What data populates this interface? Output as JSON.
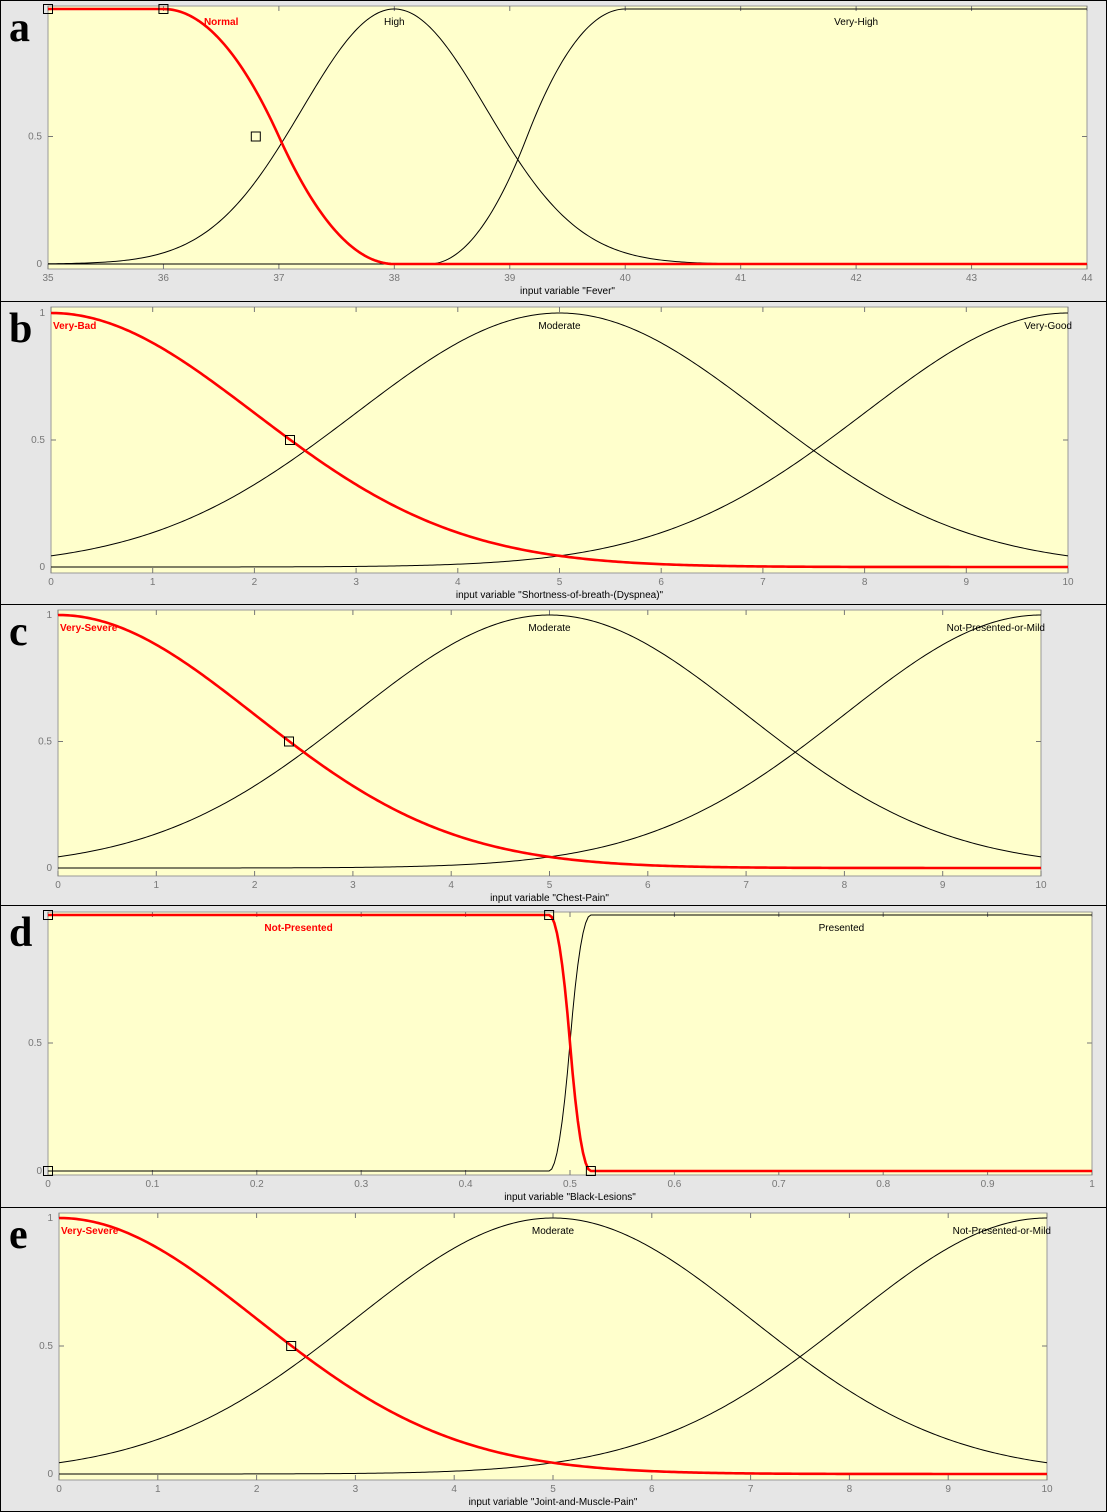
{
  "chart_data": [
    {
      "type": "line",
      "panel_letter": "a",
      "xlabel": "input variable \"Fever\"",
      "xlim": [
        35,
        44
      ],
      "ylim": [
        0,
        1
      ],
      "xticks": [
        35,
        36,
        37,
        38,
        39,
        40,
        41,
        42,
        43,
        44
      ],
      "xtick_labels": [
        "35",
        "36",
        "37",
        "38",
        "39",
        "40",
        "41",
        "42",
        "43",
        "44"
      ],
      "yticks": [
        0,
        0.5,
        1
      ],
      "ytick_labels": [
        "0",
        "0.5",
        ""
      ],
      "series_color": "#000000",
      "selected_color": "#ff0000",
      "series": [
        {
          "name": "Normal",
          "selected": true,
          "label_x": 36.5,
          "mf": {
            "kind": "zmf",
            "params": [
              36,
              38
            ]
          }
        },
        {
          "name": "High",
          "selected": false,
          "label_x": 38,
          "mf": {
            "kind": "gauss",
            "params": [
              0.8,
              38
            ]
          }
        },
        {
          "name": "Very-High",
          "selected": false,
          "label_x": 42,
          "mf": {
            "kind": "smf",
            "params": [
              38.3,
              40
            ]
          }
        }
      ],
      "markers": [
        [
          35,
          1
        ],
        [
          36,
          1
        ],
        [
          36.8,
          0.5
        ]
      ]
    },
    {
      "type": "line",
      "panel_letter": "b",
      "xlabel": "input variable \"Shortness-of-breath-(Dyspnea)\"",
      "xlim": [
        0,
        10
      ],
      "ylim": [
        0,
        1
      ],
      "xticks": [
        0,
        1,
        2,
        3,
        4,
        5,
        6,
        7,
        8,
        9,
        10
      ],
      "xtick_labels": [
        "0",
        "1",
        "2",
        "3",
        "4",
        "5",
        "6",
        "7",
        "8",
        "9",
        "10"
      ],
      "yticks": [
        0,
        0.5,
        1
      ],
      "ytick_labels": [
        "0",
        "0.5",
        "1"
      ],
      "series_color": "#000000",
      "selected_color": "#ff0000",
      "series": [
        {
          "name": "Very-Bad",
          "selected": true,
          "label_x": 0,
          "mf": {
            "kind": "gauss",
            "params": [
              2.0,
              0
            ]
          }
        },
        {
          "name": "Moderate",
          "selected": false,
          "label_x": 5,
          "mf": {
            "kind": "gauss",
            "params": [
              2.0,
              5
            ]
          }
        },
        {
          "name": "Very-Good",
          "selected": false,
          "label_x": 10,
          "mf": {
            "kind": "gauss",
            "params": [
              2.0,
              10
            ]
          }
        }
      ],
      "markers": [
        [
          2.35,
          0.5
        ]
      ]
    },
    {
      "type": "line",
      "panel_letter": "c",
      "xlabel": "input variable \"Chest-Pain\"",
      "xlim": [
        0,
        10
      ],
      "ylim": [
        0,
        1
      ],
      "xticks": [
        0,
        1,
        2,
        3,
        4,
        5,
        6,
        7,
        8,
        9,
        10
      ],
      "xtick_labels": [
        "0",
        "1",
        "2",
        "3",
        "4",
        "5",
        "6",
        "7",
        "8",
        "9",
        "10"
      ],
      "yticks": [
        0,
        0.5,
        1
      ],
      "ytick_labels": [
        "0",
        "0.5",
        "1"
      ],
      "series_color": "#000000",
      "selected_color": "#ff0000",
      "series": [
        {
          "name": "Very-Severe",
          "selected": true,
          "label_x": 0,
          "mf": {
            "kind": "gauss",
            "params": [
              2.0,
              0
            ]
          }
        },
        {
          "name": "Moderate",
          "selected": false,
          "label_x": 5,
          "mf": {
            "kind": "gauss",
            "params": [
              2.0,
              5
            ]
          }
        },
        {
          "name": "Not-Presented-or-Mild",
          "selected": false,
          "label_x": 10,
          "mf": {
            "kind": "gauss",
            "params": [
              2.0,
              10
            ]
          }
        }
      ],
      "markers": [
        [
          2.35,
          0.5
        ]
      ]
    },
    {
      "type": "line",
      "panel_letter": "d",
      "xlabel": "input variable \"Black-Lesions\"",
      "xlim": [
        0,
        1
      ],
      "ylim": [
        0,
        1
      ],
      "xticks": [
        0,
        0.1,
        0.2,
        0.3,
        0.4,
        0.5,
        0.6,
        0.7,
        0.8,
        0.9,
        1
      ],
      "xtick_labels": [
        "0",
        "0.1",
        "0.2",
        "0.3",
        "0.4",
        "0.5",
        "0.6",
        "0.7",
        "0.8",
        "0.9",
        "1"
      ],
      "yticks": [
        0,
        0.5,
        1
      ],
      "ytick_labels": [
        "0",
        "0.5",
        ""
      ],
      "series_color": "#000000",
      "selected_color": "#ff0000",
      "series": [
        {
          "name": "Not-Presented",
          "selected": true,
          "label_x": 0.24,
          "mf": {
            "kind": "zmf",
            "params": [
              0.48,
              0.52
            ]
          }
        },
        {
          "name": "Presented",
          "selected": false,
          "label_x": 0.76,
          "mf": {
            "kind": "smf",
            "params": [
              0.48,
              0.52
            ]
          }
        }
      ],
      "markers": [
        [
          0,
          1
        ],
        [
          0.48,
          1
        ],
        [
          0,
          0
        ],
        [
          0.52,
          0
        ]
      ]
    },
    {
      "type": "line",
      "panel_letter": "e",
      "xlabel": "input variable \"Joint-and-Muscle-Pain\"",
      "xlim": [
        0,
        10
      ],
      "ylim": [
        0,
        1
      ],
      "xticks": [
        0,
        1,
        2,
        3,
        4,
        5,
        6,
        7,
        8,
        9,
        10
      ],
      "xtick_labels": [
        "0",
        "1",
        "2",
        "3",
        "4",
        "5",
        "6",
        "7",
        "8",
        "9",
        "10"
      ],
      "yticks": [
        0,
        0.5,
        1
      ],
      "ytick_labels": [
        "0",
        "0.5",
        "1"
      ],
      "series_color": "#000000",
      "selected_color": "#ff0000",
      "series": [
        {
          "name": "Very-Severe",
          "selected": true,
          "label_x": 0,
          "mf": {
            "kind": "gauss",
            "params": [
              2.0,
              0
            ]
          }
        },
        {
          "name": "Moderate",
          "selected": false,
          "label_x": 5,
          "mf": {
            "kind": "gauss",
            "params": [
              2.0,
              5
            ]
          }
        },
        {
          "name": "Not-Presented-or-Mild",
          "selected": false,
          "label_x": 10,
          "mf": {
            "kind": "gauss",
            "params": [
              2.0,
              10
            ]
          }
        }
      ],
      "markers": [
        [
          2.35,
          0.5
        ]
      ]
    }
  ]
}
